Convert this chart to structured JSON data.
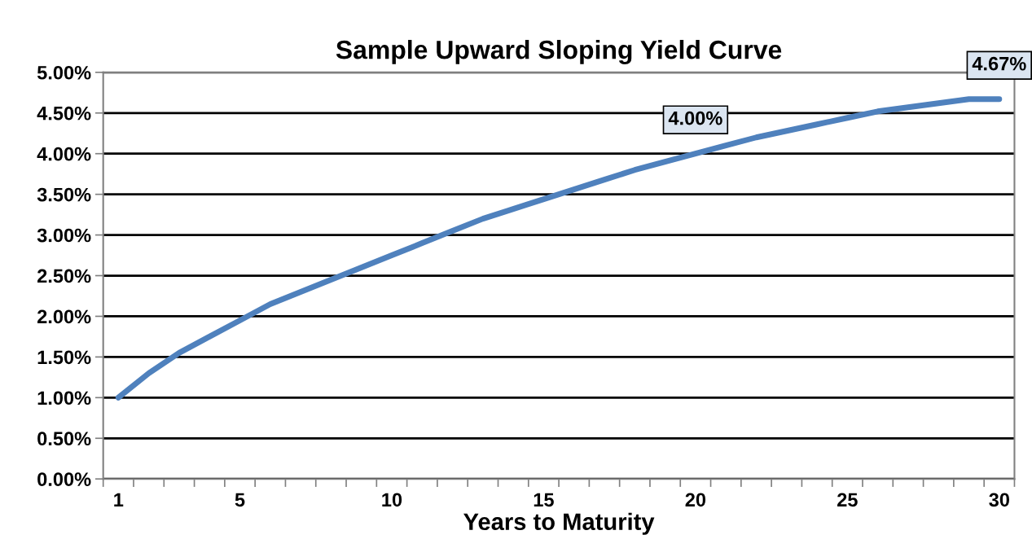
{
  "chart_data": {
    "type": "line",
    "title": "Sample Upward Sloping Yield Curve",
    "xlabel": "Years to Maturity",
    "categories": [
      "1",
      null,
      null,
      null,
      "5",
      null,
      null,
      null,
      null,
      "10",
      null,
      null,
      null,
      null,
      "15",
      null,
      null,
      null,
      null,
      "20",
      null,
      null,
      null,
      null,
      "25",
      null,
      null,
      null,
      null,
      "30"
    ],
    "series": [
      {
        "color": "#4f81bd",
        "values": [
          1.0,
          1.3,
          1.55,
          1.75,
          1.95,
          2.15,
          2.3,
          2.45,
          2.6,
          2.75,
          2.9,
          3.05,
          3.2,
          3.32,
          3.44,
          3.56,
          3.68,
          3.8,
          3.9,
          4.0,
          4.1,
          4.2,
          4.28,
          4.36,
          4.44,
          4.52,
          4.57,
          4.62,
          4.67,
          4.67
        ],
        "value_labels": [
          null,
          null,
          null,
          null,
          null,
          null,
          null,
          null,
          null,
          null,
          null,
          null,
          null,
          null,
          null,
          null,
          null,
          null,
          null,
          "4.00%",
          null,
          null,
          null,
          null,
          null,
          null,
          null,
          null,
          null,
          "4.67%"
        ]
      }
    ],
    "ylim": [
      0,
      5
    ],
    "yticks": [
      {
        "value": 0,
        "label": "0.00%"
      },
      {
        "value": 0.5,
        "label": "0.50%"
      },
      {
        "value": 1,
        "label": "1.00%"
      },
      {
        "value": 1.5,
        "label": "1.50%"
      },
      {
        "value": 2,
        "label": "2.00%"
      },
      {
        "value": 2.5,
        "label": "2.50%"
      },
      {
        "value": 3,
        "label": "3.00%"
      },
      {
        "value": 3.5,
        "label": "3.50%"
      },
      {
        "value": 4,
        "label": "4.00%"
      },
      {
        "value": 4.5,
        "label": "4.50%"
      },
      {
        "value": 5,
        "label": "5.00%"
      }
    ],
    "grid": "y",
    "line_style": "solid",
    "marker": "none"
  }
}
